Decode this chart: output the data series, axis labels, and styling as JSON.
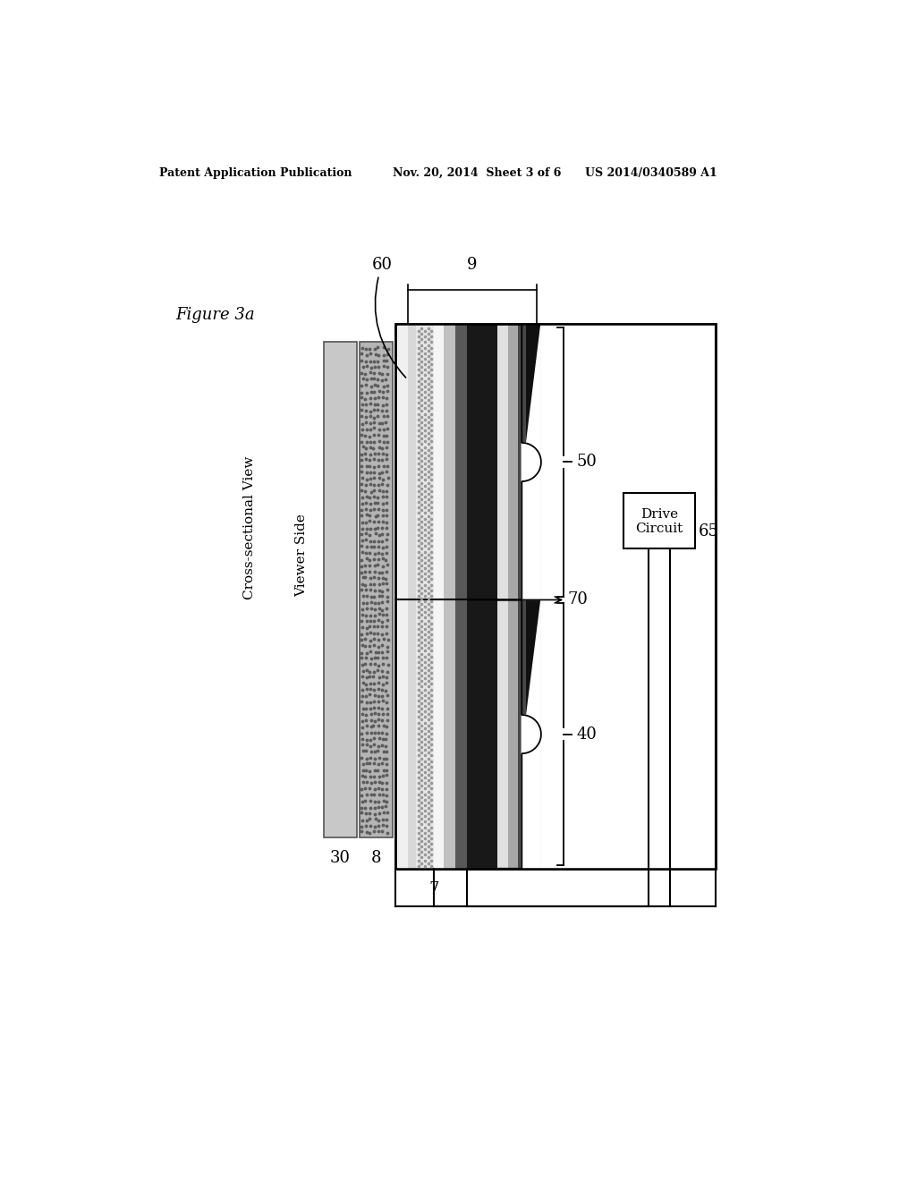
{
  "title_left": "Patent Application Publication",
  "title_center": "Nov. 20, 2014  Sheet 3 of 6",
  "title_right": "US 2014/0340589 A1",
  "figure_label": "Figure 3a",
  "cross_section_label": "Cross-sectional View",
  "viewer_side_label": "Viewer Side",
  "bg": "#ffffff",
  "label9": "9",
  "label60": "60",
  "label50": "50",
  "label70": "70",
  "label40": "40",
  "label30": "30",
  "label8": "8",
  "label7": "7",
  "label65": "65",
  "drive_line1": "Drive",
  "drive_line2": "Circuit"
}
